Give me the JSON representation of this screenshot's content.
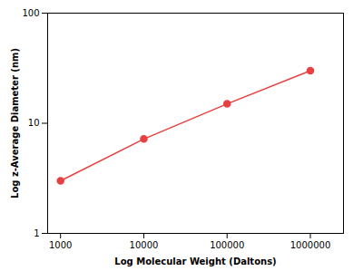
{
  "chart_data": {
    "type": "line",
    "x": [
      1000,
      10000,
      100000,
      1000000
    ],
    "values": [
      3.0,
      7.2,
      15.0,
      30.0
    ],
    "color": "#e84040",
    "marker": "circle",
    "xlabel": "Log Molecular Weight (Daltons)",
    "ylabel": "Log z-Average Diameter (nm)",
    "xlim": [
      700,
      2500000
    ],
    "ylim": [
      1,
      100
    ],
    "xticks": [
      1000,
      10000,
      100000,
      1000000
    ],
    "yticks": [
      1,
      10,
      100
    ],
    "log": true,
    "grid": false
  }
}
